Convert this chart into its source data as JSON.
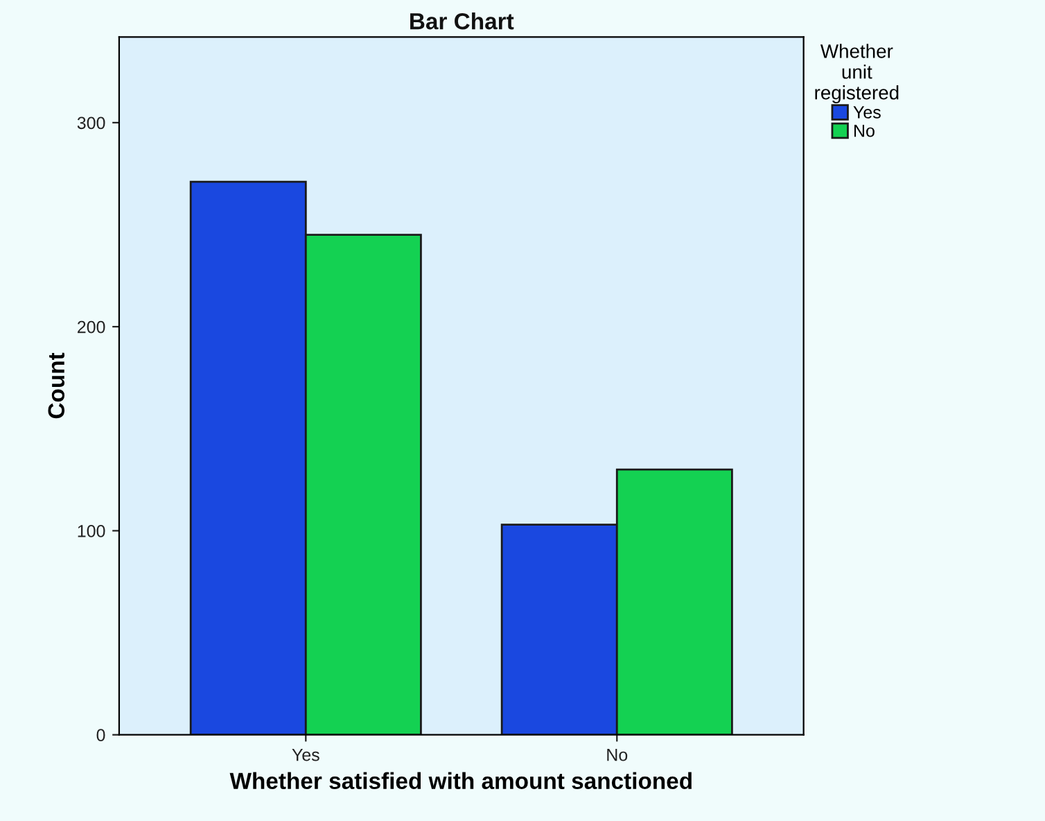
{
  "chart_data": {
    "type": "bar",
    "title": "Bar Chart",
    "xlabel": "Whether satisfied with amount sanctioned",
    "ylabel": "Count",
    "legend_title": "Whether\nunit\nregistered",
    "categories": [
      "Yes",
      "No"
    ],
    "series": [
      {
        "name": "Yes",
        "color": "#1a48e0",
        "values": [
          271,
          103
        ]
      },
      {
        "name": "No",
        "color": "#14d152",
        "values": [
          245,
          130
        ]
      }
    ],
    "ylim": [
      0,
      342
    ],
    "yticks": [
      0,
      100,
      200,
      300
    ],
    "grid": false,
    "legend": "top right"
  }
}
